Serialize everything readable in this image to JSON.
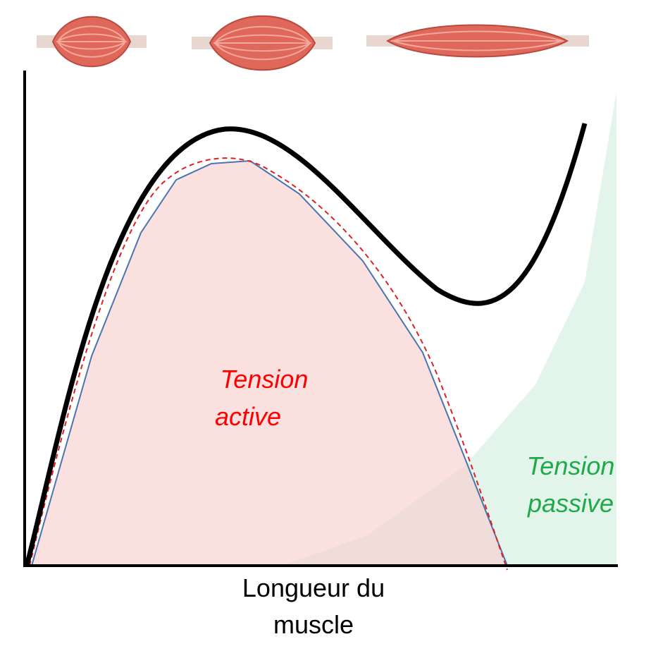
{
  "labels": {
    "active": [
      "Tension",
      "active"
    ],
    "passive": [
      "Tension",
      "passive"
    ]
  },
  "axis_label": [
    "Longueur du",
    "muscle"
  ]
}
